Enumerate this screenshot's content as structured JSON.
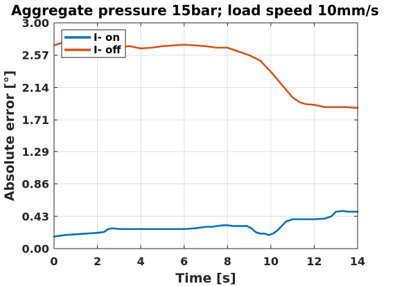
{
  "chart_data": {
    "type": "line",
    "title": "Aggregate pressure 15bar; load speed 10mm/s",
    "xlabel": "Time [s]",
    "ylabel": "Absolute error [°]",
    "xlim": [
      0,
      14
    ],
    "ylim": [
      0,
      3.0
    ],
    "xticks": [
      0,
      2,
      4,
      6,
      8,
      10,
      12,
      14
    ],
    "xtick_labels": [
      "0",
      "2",
      "4",
      "6",
      "8",
      "10",
      "12",
      "14"
    ],
    "yticks": [
      0,
      0.43,
      0.86,
      1.29,
      1.71,
      2.14,
      2.57,
      3.0
    ],
    "ytick_labels": [
      "0.00",
      "0.43",
      "0.86",
      "1.29",
      "1.71",
      "2.14",
      "2.57",
      "3.00"
    ],
    "grid": true,
    "legend_position": "top-left",
    "series": [
      {
        "name": "I- on",
        "color": "#0072bd",
        "x": [
          0,
          0.5,
          1,
          1.5,
          2,
          2.3,
          2.5,
          2.7,
          3,
          3.5,
          4,
          4.5,
          5,
          5.5,
          6,
          6.5,
          7,
          7.3,
          7.5,
          7.8,
          8,
          8.3,
          8.6,
          8.9,
          9.1,
          9.3,
          9.5,
          9.7,
          9.9,
          10.1,
          10.3,
          10.5,
          10.7,
          11,
          11.5,
          12,
          12.5,
          12.8,
          13,
          13.3,
          13.6,
          14
        ],
        "y": [
          0.16,
          0.18,
          0.19,
          0.2,
          0.21,
          0.22,
          0.26,
          0.27,
          0.26,
          0.26,
          0.26,
          0.26,
          0.26,
          0.26,
          0.26,
          0.27,
          0.29,
          0.29,
          0.3,
          0.31,
          0.31,
          0.3,
          0.3,
          0.3,
          0.27,
          0.22,
          0.2,
          0.2,
          0.18,
          0.2,
          0.24,
          0.3,
          0.36,
          0.39,
          0.39,
          0.39,
          0.4,
          0.43,
          0.49,
          0.5,
          0.49,
          0.49
        ]
      },
      {
        "name": "I- off",
        "color": "#d95319",
        "x": [
          0,
          0.3,
          0.6,
          1,
          1.5,
          2,
          2.5,
          3,
          3.5,
          4,
          4.5,
          5,
          5.5,
          6,
          6.5,
          7,
          7.5,
          8,
          8.5,
          9,
          9.5,
          10,
          10.5,
          11,
          11.3,
          11.6,
          12,
          12.5,
          13,
          13.5,
          14
        ],
        "y": [
          2.7,
          2.73,
          2.72,
          2.7,
          2.69,
          2.69,
          2.68,
          2.68,
          2.69,
          2.66,
          2.67,
          2.69,
          2.7,
          2.71,
          2.7,
          2.69,
          2.67,
          2.67,
          2.62,
          2.57,
          2.5,
          2.35,
          2.18,
          2.01,
          1.95,
          1.92,
          1.91,
          1.88,
          1.88,
          1.88,
          1.87
        ]
      }
    ]
  }
}
